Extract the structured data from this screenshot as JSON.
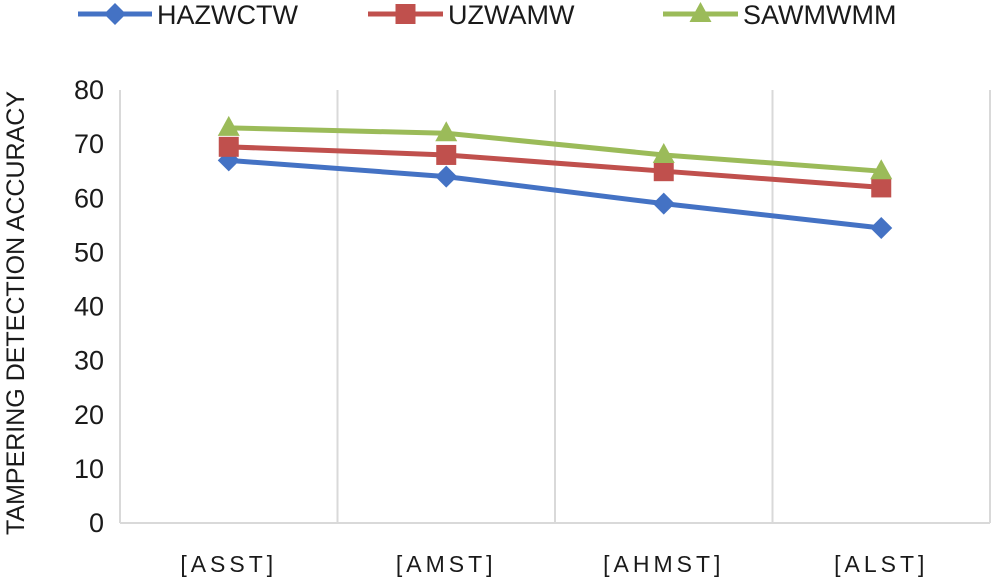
{
  "chart_data": {
    "type": "line",
    "title": "",
    "xlabel": "",
    "ylabel": "TAMPERING DETECTION ACCURACY",
    "categories": [
      "[ASST]",
      "[AMST]",
      "[AHMST]",
      "[ALST]"
    ],
    "ylim": [
      0,
      80
    ],
    "yticks": [
      0,
      10,
      20,
      30,
      40,
      50,
      60,
      70,
      80
    ],
    "grid": "vertical",
    "legend_position": "top",
    "series": [
      {
        "name": "HAZWCTW",
        "color": "#4472C4",
        "marker": "diamond",
        "values": [
          67,
          64,
          59,
          54.5
        ]
      },
      {
        "name": "UZWAMW",
        "color": "#C0504D",
        "marker": "square",
        "values": [
          69.5,
          68,
          65,
          62
        ]
      },
      {
        "name": "SAWMWMM",
        "color": "#9BBB59",
        "marker": "triangle",
        "values": [
          73,
          72,
          68,
          65
        ]
      }
    ]
  }
}
